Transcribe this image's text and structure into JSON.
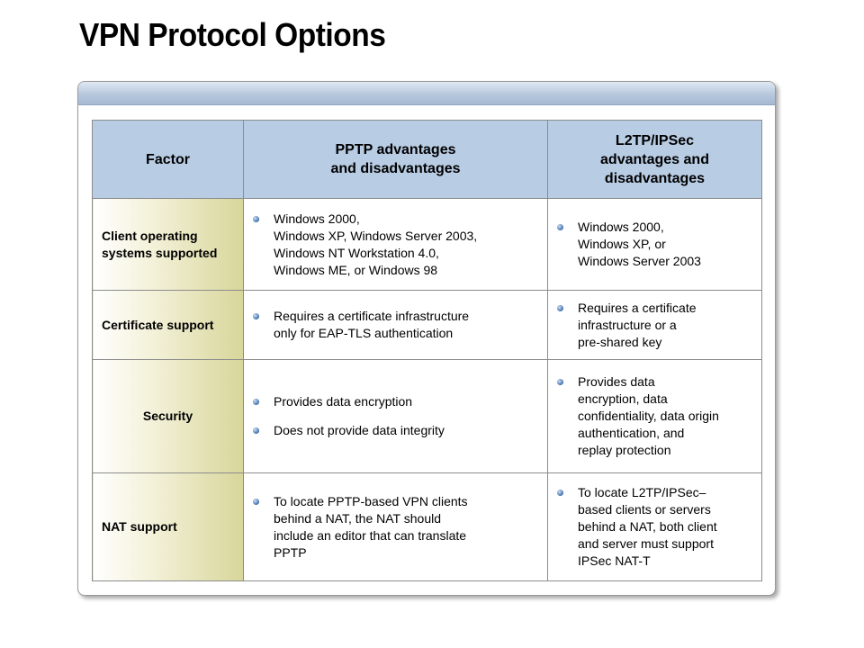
{
  "title": "VPN Protocol Options",
  "table": {
    "headers": [
      "Factor",
      "PPTP advantages\nand disadvantages",
      "L2TP/IPSec\nadvantages and\ndisadvantages"
    ],
    "rows": [
      {
        "factor": "Client operating systems supported",
        "pptp": [
          "Windows 2000,\nWindows XP, Windows Server 2003,\nWindows NT Workstation 4.0,\nWindows ME, or Windows 98"
        ],
        "l2tp": [
          "Windows 2000,\nWindows XP, or\nWindows Server 2003"
        ]
      },
      {
        "factor": "Certificate support",
        "pptp": [
          "Requires a certificate infrastructure\nonly for EAP-TLS authentication"
        ],
        "l2tp": [
          "Requires a certificate\ninfrastructure or a\npre-shared key"
        ]
      },
      {
        "factor": "Security",
        "pptp": [
          "Provides data encryption",
          "Does not provide data integrity"
        ],
        "l2tp": [
          "Provides data\nencryption, data\nconfidentiality, data origin\nauthentication, and\nreplay protection"
        ]
      },
      {
        "factor": "NAT support",
        "pptp": [
          "To locate PPTP-based VPN clients\nbehind a NAT, the NAT should\ninclude an editor that can translate\nPPTP"
        ],
        "l2tp": [
          "To locate L2TP/IPSec–\nbased clients or servers\nbehind a NAT, both client\nand server must support\nIPSec NAT-T"
        ]
      }
    ]
  },
  "colors": {
    "header_bg": "#b8cce4",
    "factor_bg": "#d8d69a",
    "bullet": "#3e6fb0"
  }
}
